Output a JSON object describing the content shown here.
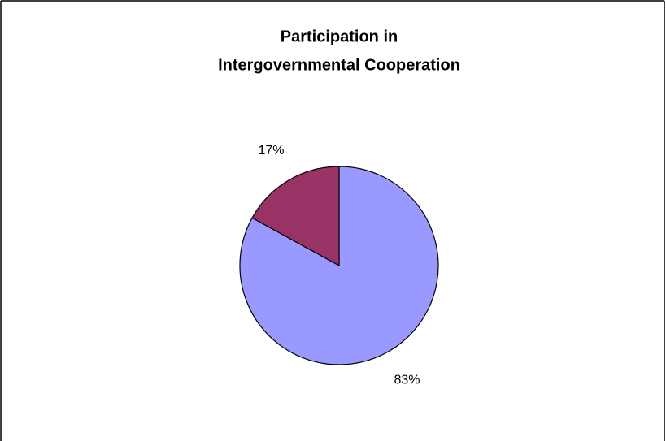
{
  "chart_data": {
    "type": "pie",
    "title": [
      "Participation in",
      "Intergovernmental Cooperation"
    ],
    "values": [
      83,
      17
    ],
    "value_labels": [
      "83%",
      "17%"
    ],
    "colors": [
      "#9999ff",
      "#993366"
    ]
  }
}
